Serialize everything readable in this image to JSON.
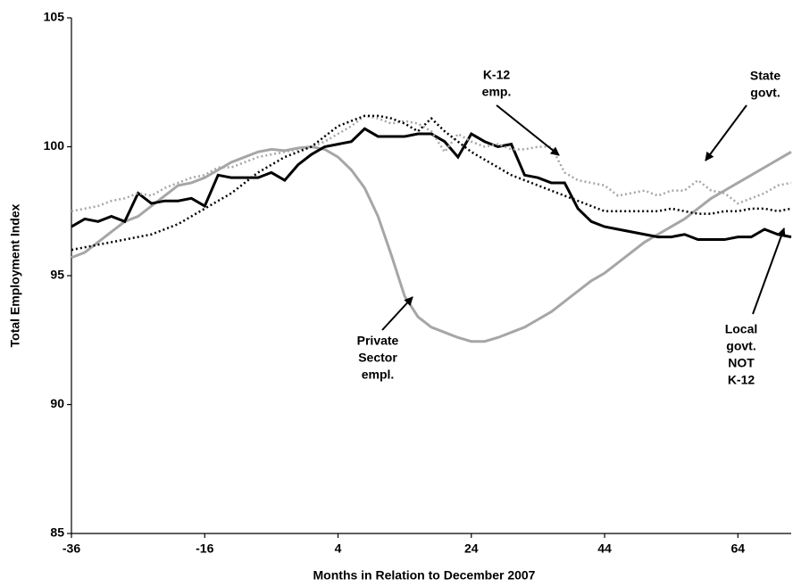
{
  "chart_data": {
    "type": "line",
    "x_label": "Months in Relation to December 2007",
    "y_label": "Total Employment Index",
    "xlim": [
      -36,
      72
    ],
    "xticks": [
      -36,
      -16,
      4,
      24,
      44,
      64
    ],
    "ylim": [
      85,
      105
    ],
    "yticks": [
      85,
      90,
      95,
      100,
      105
    ],
    "x": [
      -36,
      -34,
      -32,
      -30,
      -28,
      -26,
      -24,
      -22,
      -20,
      -18,
      -16,
      -14,
      -12,
      -10,
      -8,
      -6,
      -4,
      -2,
      0,
      2,
      4,
      6,
      8,
      10,
      12,
      14,
      16,
      18,
      20,
      22,
      24,
      26,
      28,
      30,
      32,
      34,
      36,
      38,
      40,
      42,
      44,
      46,
      48,
      50,
      52,
      54,
      56,
      58,
      60,
      62,
      64,
      66,
      68,
      70,
      72
    ],
    "series": [
      {
        "color": "#a6a6a6",
        "dash": "solid",
        "width": 3,
        "values": [
          95.7,
          95.9,
          96.3,
          96.7,
          97.1,
          97.3,
          97.7,
          98.1,
          98.5,
          98.6,
          98.8,
          99.1,
          99.4,
          99.6,
          99.8,
          99.9,
          99.85,
          99.95,
          100,
          99.9,
          99.6,
          99.1,
          98.4,
          97.3,
          95.8,
          94.2,
          93.4,
          93.0,
          92.8,
          92.6,
          92.45,
          92.45,
          92.6,
          92.8,
          93.0,
          93.3,
          93.6,
          94.0,
          94.4,
          94.8,
          95.1,
          95.5,
          95.9,
          96.3,
          96.6,
          96.9,
          97.2,
          97.6,
          98.0,
          98.3,
          98.6,
          98.9,
          99.2,
          99.5,
          99.8
        ]
      },
      {
        "color": "#000000",
        "dash": "solid",
        "width": 3,
        "values": [
          96.9,
          97.2,
          97.1,
          97.3,
          97.1,
          98.2,
          97.8,
          97.9,
          97.9,
          98.0,
          97.7,
          98.9,
          98.8,
          98.8,
          98.8,
          99.0,
          98.7,
          99.3,
          99.7,
          100.0,
          100.1,
          100.2,
          100.7,
          100.4,
          100.4,
          100.4,
          100.5,
          100.5,
          100.2,
          99.6,
          100.5,
          100.2,
          100.0,
          100.1,
          98.9,
          98.8,
          98.6,
          98.6,
          97.6,
          97.1,
          96.9,
          96.8,
          96.7,
          96.6,
          96.5,
          96.5,
          96.6,
          96.4,
          96.4,
          96.4,
          96.5,
          96.5,
          96.8,
          96.6,
          96.5
        ]
      },
      {
        "color": "#a6a6a6",
        "dash": "dotted",
        "width": 2.5,
        "values": [
          97.5,
          97.6,
          97.7,
          97.9,
          98.0,
          98.2,
          98.1,
          98.4,
          98.6,
          98.8,
          98.9,
          99.2,
          99.2,
          99.4,
          99.6,
          99.7,
          99.8,
          99.9,
          100.0,
          100.2,
          100.5,
          100.8,
          101.2,
          101.1,
          100.9,
          101.0,
          100.9,
          100.6,
          99.8,
          100.5,
          100.2,
          100.0,
          100.1,
          99.9,
          99.9,
          100.0,
          100.0,
          99.0,
          98.7,
          98.6,
          98.5,
          98.1,
          98.2,
          98.3,
          98.1,
          98.3,
          98.3,
          98.7,
          98.3,
          98.2,
          97.8,
          98.0,
          98.2,
          98.5,
          98.6
        ]
      },
      {
        "color": "#000000",
        "dash": "dotted",
        "width": 2.5,
        "values": [
          96.0,
          96.1,
          96.2,
          96.3,
          96.4,
          96.5,
          96.6,
          96.8,
          97.0,
          97.3,
          97.6,
          97.9,
          98.2,
          98.6,
          99.0,
          99.3,
          99.6,
          99.8,
          100.0,
          100.4,
          100.8,
          101.0,
          101.2,
          101.2,
          101.1,
          100.9,
          100.6,
          101.1,
          100.6,
          100.2,
          99.8,
          99.5,
          99.2,
          98.9,
          98.7,
          98.5,
          98.3,
          98.1,
          97.9,
          97.7,
          97.5,
          97.5,
          97.5,
          97.5,
          97.5,
          97.6,
          97.5,
          97.4,
          97.4,
          97.5,
          97.5,
          97.6,
          97.6,
          97.5,
          97.6
        ]
      }
    ],
    "annotations": [
      {
        "lines": [
          "K-12",
          "emp."
        ]
      },
      {
        "lines": [
          "State",
          "govt."
        ]
      },
      {
        "lines": [
          "Private",
          "Sector",
          "empl."
        ]
      },
      {
        "lines": [
          "Local",
          "govt.",
          "NOT",
          "K-12"
        ]
      }
    ]
  }
}
